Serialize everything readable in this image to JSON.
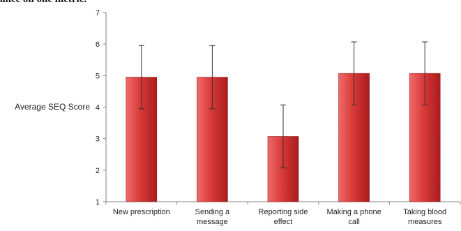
{
  "page": {
    "top_fragment": "ance on one metric."
  },
  "chart_data": {
    "type": "bar",
    "title": "",
    "xlabel": "",
    "ylabel": "Average SEQ Score",
    "categories": [
      [
        "New prescription"
      ],
      [
        "Sending a",
        "message"
      ],
      [
        "Reporting side",
        "effect"
      ],
      [
        "Making a phone",
        "call"
      ],
      [
        "Taking blood",
        "measures"
      ]
    ],
    "values": [
      4.95,
      4.95,
      3.07,
      5.07,
      5.07
    ],
    "error_bars": [
      1.0,
      1.0,
      1.0,
      1.0,
      1.0
    ],
    "ylim": [
      1,
      7
    ],
    "yticks": [
      1,
      2,
      3,
      4,
      5,
      6,
      7
    ],
    "grid": false,
    "legend": "none",
    "colors": {
      "bar_light": "#ef6b6b",
      "bar_mid": "#d93a3a",
      "bar_dark": "#a91c1c",
      "bar_edge": "#8e1a1a",
      "axis": "#868686",
      "error_bar": "#333333"
    }
  }
}
